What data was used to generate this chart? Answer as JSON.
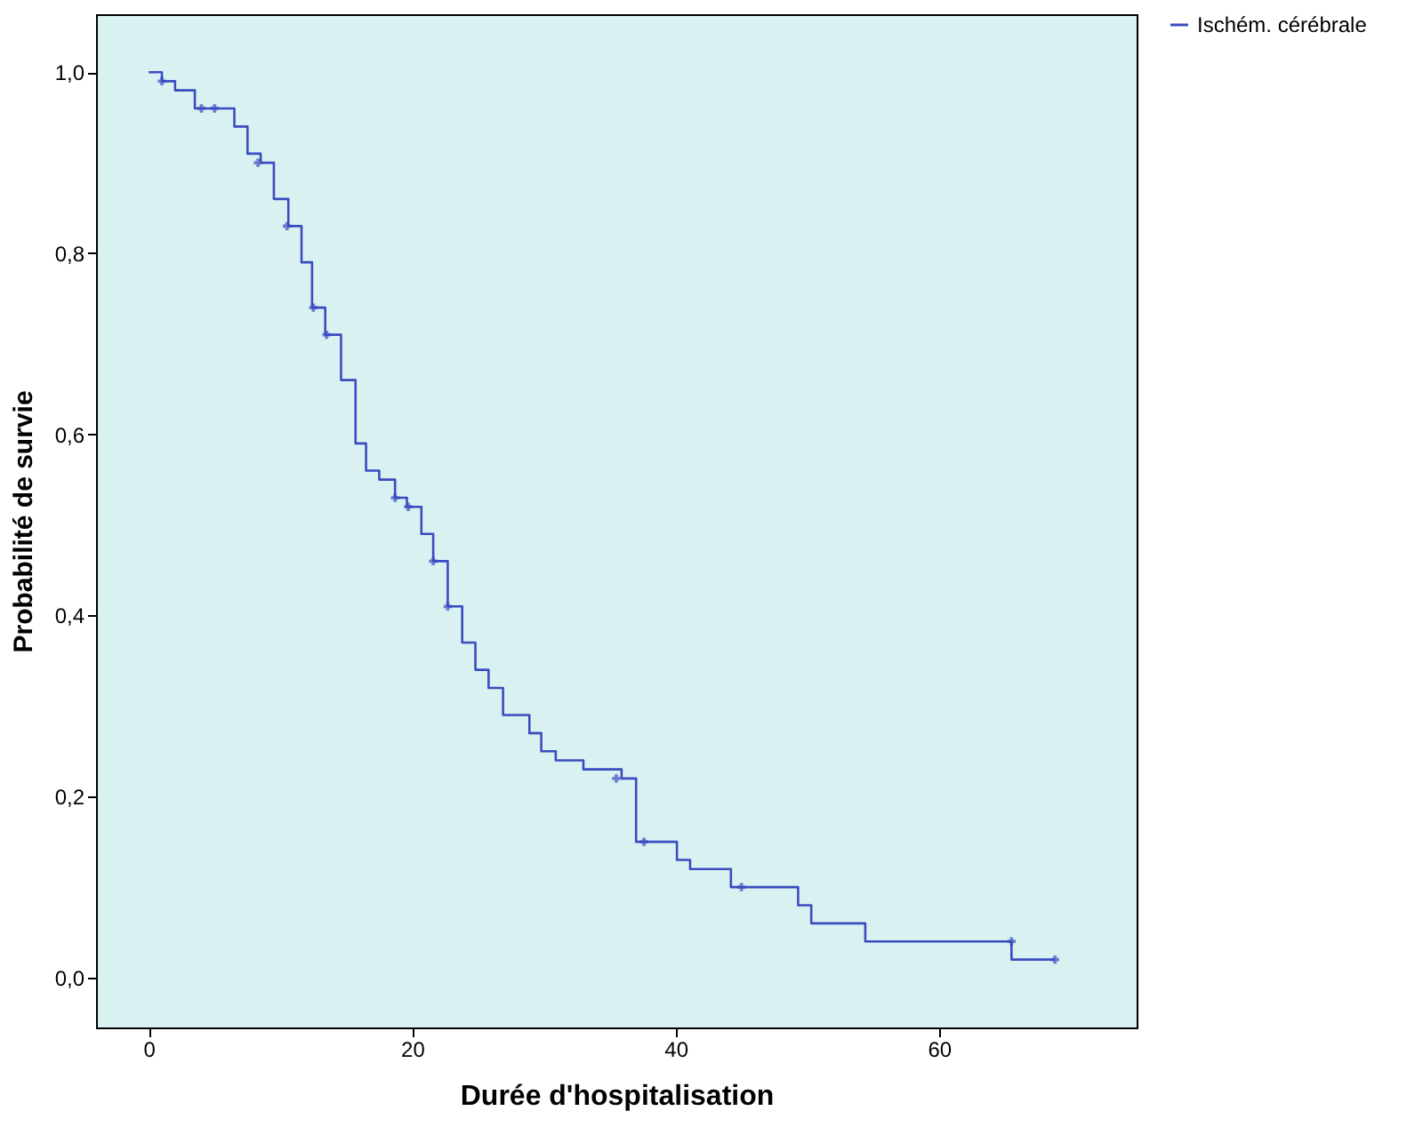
{
  "chart_data": {
    "type": "step",
    "xlabel": "Durée d'hospitalisation",
    "ylabel": "Probabilité de survie",
    "xlim": [
      -4,
      75
    ],
    "xticks": [
      0,
      20,
      40,
      60
    ],
    "ylim": [
      -0.055,
      1.064
    ],
    "yticks": [
      {
        "value": 0,
        "label": "0,0"
      },
      {
        "value": 0.2,
        "label": "0,2"
      },
      {
        "value": 0.4,
        "label": "0,4"
      },
      {
        "value": 0.6,
        "label": "0,6"
      },
      {
        "value": 0.8,
        "label": "0,8"
      },
      {
        "value": 1.0,
        "label": "1,0"
      }
    ],
    "grid": false,
    "legend": "right",
    "series": [
      {
        "name": "Ischém. cérébrale",
        "color": "#3b4cc0",
        "line_style": "solid",
        "marker": "none",
        "x": [
          0,
          1,
          2,
          3.5,
          6.5,
          7.5,
          8.5,
          9.5,
          10.6,
          11.6,
          12.4,
          13.4,
          14.6,
          15.7,
          16.5,
          17.5,
          18.7,
          19.6,
          20.7,
          21.6,
          22.7,
          23.8,
          24.8,
          25.8,
          26.9,
          28.9,
          29.8,
          30.9,
          33,
          35.9,
          37,
          40.1,
          41.1,
          44.2,
          49.3,
          50.3,
          54.4,
          65.5,
          68.8
        ],
        "values": [
          1.0,
          0.99,
          0.98,
          0.96,
          0.94,
          0.91,
          0.9,
          0.86,
          0.83,
          0.79,
          0.74,
          0.71,
          0.66,
          0.59,
          0.56,
          0.55,
          0.53,
          0.52,
          0.49,
          0.46,
          0.41,
          0.37,
          0.34,
          0.32,
          0.29,
          0.27,
          0.25,
          0.24,
          0.23,
          0.22,
          0.15,
          0.13,
          0.12,
          0.1,
          0.08,
          0.06,
          0.04,
          0.02,
          0.02
        ]
      },
      {
        "type": "scatter",
        "color": "#3b4cc0",
        "marker": "cross",
        "x": [
          1,
          4,
          5,
          8.3,
          10.5,
          12.5,
          13.5,
          18.7,
          19.7,
          21.6,
          22.7,
          35.5,
          37.6,
          45,
          65.5,
          68.8
        ],
        "values": [
          0.99,
          0.96,
          0.96,
          0.9,
          0.83,
          0.74,
          0.71,
          0.53,
          0.52,
          0.46,
          0.41,
          0.22,
          0.15,
          0.1,
          0.04,
          0.02
        ]
      }
    ]
  }
}
